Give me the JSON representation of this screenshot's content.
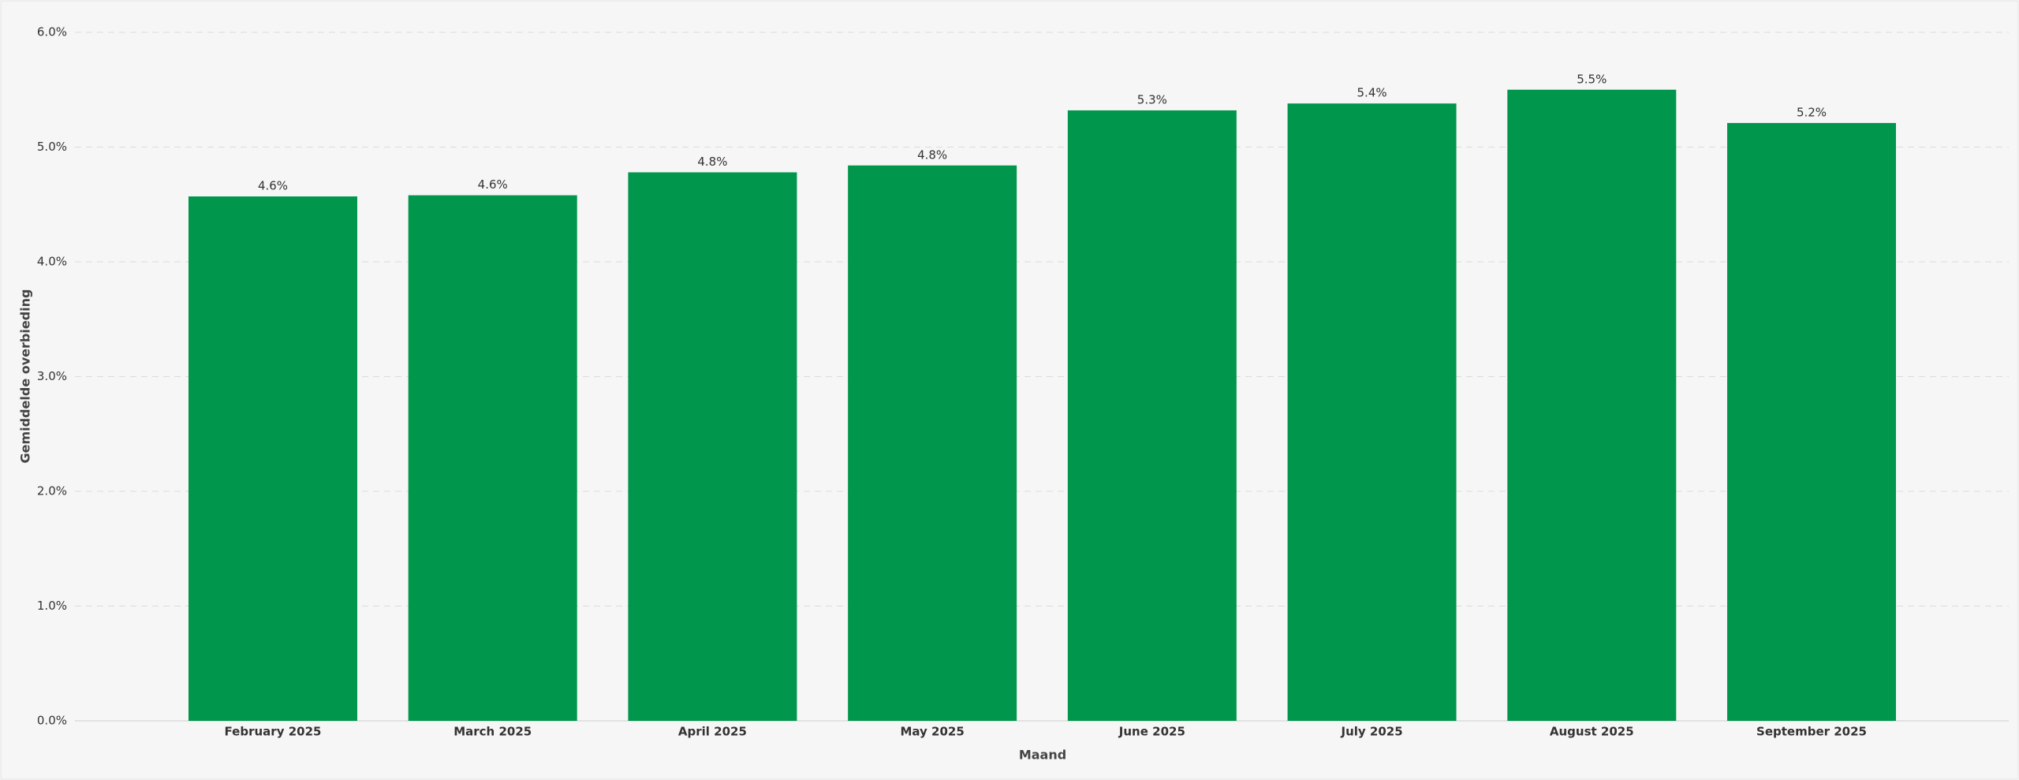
{
  "chart_data": {
    "type": "bar",
    "x_label": "Maand",
    "y_label": "Gemiddelde overbieding",
    "categories": [
      "February 2025",
      "March 2025",
      "April 2025",
      "May 2025",
      "June 2025",
      "July 2025",
      "August 2025",
      "September 2025"
    ],
    "values": [
      4.57,
      4.58,
      4.78,
      4.84,
      5.32,
      5.38,
      5.5,
      5.21
    ],
    "value_labels": [
      "4.6%",
      "4.6%",
      "4.8%",
      "4.8%",
      "5.3%",
      "5.4%",
      "5.5%",
      "5.2%"
    ],
    "color": "#00964b",
    "ylim": [
      0,
      6
    ],
    "yticks": [
      {
        "value": 0,
        "label": "0.0%"
      },
      {
        "value": 1,
        "label": "1.0%"
      },
      {
        "value": 2,
        "label": "2.0%"
      },
      {
        "value": 3,
        "label": "3.0%"
      },
      {
        "value": 4,
        "label": "4.0%"
      },
      {
        "value": 5,
        "label": "5.0%"
      },
      {
        "value": 6,
        "label": "6.0%"
      }
    ],
    "grid": true
  }
}
